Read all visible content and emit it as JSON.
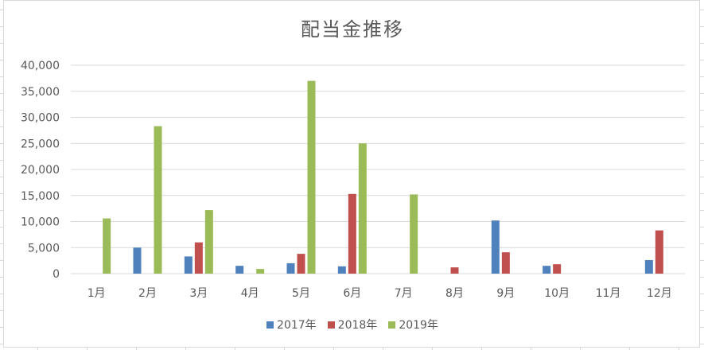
{
  "chart_data": {
    "type": "bar",
    "title": "配当金推移",
    "xlabel": "",
    "ylabel": "",
    "categories": [
      "1月",
      "2月",
      "3月",
      "4月",
      "5月",
      "6月",
      "7月",
      "8月",
      "9月",
      "10月",
      "11月",
      "12月"
    ],
    "ylim": [
      0,
      40000
    ],
    "yticks": [
      "0",
      "5,000",
      "10,000",
      "15,000",
      "20,000",
      "25,000",
      "30,000",
      "35,000",
      "40,000"
    ],
    "grid": true,
    "legend_position": "bottom",
    "series": [
      {
        "name": "2017年",
        "color": "#4f81bd",
        "values": [
          0,
          5000,
          3300,
          1500,
          2000,
          1400,
          0,
          0,
          10200,
          1500,
          0,
          2600
        ]
      },
      {
        "name": "2018年",
        "color": "#c0504d",
        "values": [
          0,
          0,
          6000,
          0,
          3800,
          15300,
          0,
          1200,
          4100,
          1800,
          0,
          8300
        ]
      },
      {
        "name": "2019年",
        "color": "#9bbb59",
        "values": [
          10600,
          28300,
          12200,
          900,
          37000,
          25000,
          15200,
          0,
          0,
          0,
          0,
          0
        ]
      }
    ]
  }
}
